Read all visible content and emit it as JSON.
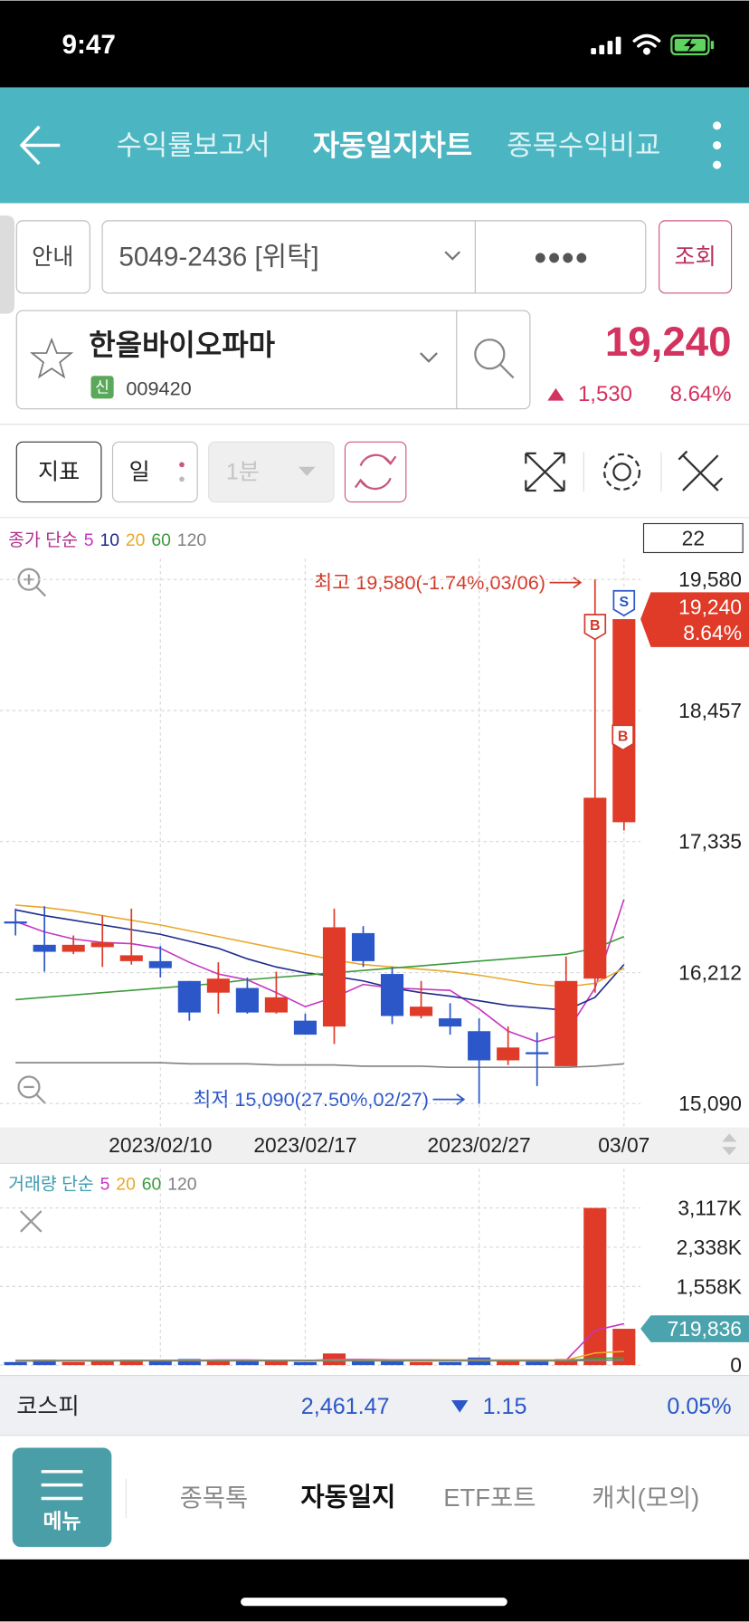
{
  "status": {
    "time": "9:47"
  },
  "header": {
    "tabs": [
      "수익률보고서",
      "자동일지차트",
      "종목수익비교"
    ]
  },
  "account": {
    "guide": "안내",
    "number": "5049-2436 [위탁]",
    "password": "●●●●",
    "query": "조회"
  },
  "stock": {
    "name": "한올바이오파마",
    "badge": "신",
    "code": "009420",
    "price": "19,240",
    "change": "1,530",
    "rate": "8.64%"
  },
  "toolbar": {
    "indicator": "지표",
    "period": "일",
    "interval": "1분"
  },
  "chart_data": [
    {
      "type": "candlestick",
      "legend_title": "종가 단순",
      "legend_color": "#b0308a",
      "visible_count": "22",
      "annotations": [
        "최고 19,580(-1.74%,03/06)",
        "최저 15,090(27.50%,02/27)"
      ],
      "markers": [
        "B",
        "S",
        "B"
      ],
      "price_tag": [
        "19,240",
        "8.64%"
      ],
      "categories": [
        null,
        null,
        null,
        null,
        null,
        "2023/02/10",
        null,
        null,
        null,
        null,
        "2023/02/17",
        null,
        null,
        null,
        null,
        null,
        "2023/02/27",
        null,
        null,
        null,
        null,
        "03/07"
      ],
      "open": [
        16650,
        16450,
        16390,
        16430,
        16310,
        16310,
        16140,
        16040,
        16080,
        15870,
        15800,
        15750,
        16550,
        16200,
        15840,
        15820,
        15710,
        15460,
        15530,
        15410,
        16160,
        17500
      ],
      "high": [
        16760,
        16780,
        16530,
        16700,
        16760,
        16440,
        16140,
        16300,
        16170,
        16220,
        15860,
        16760,
        16610,
        16260,
        16140,
        15950,
        15820,
        15750,
        15700,
        16350,
        19580,
        19240
      ],
      "low": [
        16530,
        16220,
        16370,
        16260,
        16280,
        16170,
        15800,
        15860,
        15860,
        15860,
        15680,
        15600,
        16260,
        15770,
        15820,
        15680,
        15090,
        15420,
        15240,
        15410,
        16040,
        17430
      ],
      "close": [
        16650,
        16390,
        16450,
        16470,
        16360,
        16250,
        15870,
        16160,
        15870,
        16000,
        15680,
        16600,
        16310,
        15840,
        15920,
        15750,
        15460,
        15570,
        15520,
        16140,
        17710,
        19240
      ],
      "up_color": "#e03a28",
      "down_color": "#2b57c9",
      "ylim": [
        15090,
        19580
      ],
      "yticks": [
        {
          "value": 19580,
          "label": "19,580"
        },
        {
          "value": 18457,
          "label": "18,457"
        },
        {
          "value": 17335,
          "label": "17,335"
        },
        {
          "value": 16212,
          "label": "16,212"
        },
        {
          "value": 15090,
          "label": "15,090"
        }
      ],
      "grid": true,
      "series": [
        {
          "name": "5",
          "color": "#c635c1",
          "values": [
            16650,
            16560,
            16500,
            16470,
            16460,
            16420,
            16300,
            16200,
            16150,
            16040,
            15920,
            16000,
            16110,
            16080,
            16070,
            16060,
            15900,
            15710,
            15620,
            15690,
            16080,
            16840
          ]
        },
        {
          "name": "10",
          "color": "#1e2a8a",
          "values": [
            16750,
            16700,
            16660,
            16620,
            16580,
            16540,
            16480,
            16420,
            16330,
            16260,
            16210,
            16180,
            16140,
            16080,
            16040,
            16010,
            15970,
            15930,
            15910,
            15890,
            16000,
            16280
          ]
        },
        {
          "name": "20",
          "color": "#e8a92a",
          "values": [
            16790,
            16770,
            16740,
            16700,
            16660,
            16620,
            16570,
            16520,
            16470,
            16420,
            16370,
            16320,
            16280,
            16260,
            16240,
            16220,
            16190,
            16150,
            16110,
            16090,
            16120,
            16250
          ]
        },
        {
          "name": "60",
          "color": "#3c9a3c",
          "values": [
            15980,
            16000,
            16020,
            16040,
            16060,
            16080,
            16100,
            16120,
            16150,
            16170,
            16190,
            16210,
            16230,
            16250,
            16270,
            16290,
            16310,
            16330,
            16350,
            16370,
            16420,
            16520
          ]
        },
        {
          "name": "120",
          "color": "#808080",
          "values": [
            15440,
            15440,
            15440,
            15440,
            15440,
            15440,
            15430,
            15430,
            15430,
            15420,
            15420,
            15420,
            15410,
            15410,
            15410,
            15400,
            15400,
            15400,
            15400,
            15400,
            15410,
            15430
          ]
        }
      ]
    },
    {
      "type": "bar",
      "legend_title": "거래량 단순",
      "legend_color": "#3b9bb0",
      "values": [
        60000,
        110000,
        60000,
        90000,
        110000,
        90000,
        120000,
        90000,
        90000,
        90000,
        60000,
        230000,
        90000,
        90000,
        60000,
        60000,
        150000,
        90000,
        70000,
        120000,
        3117000,
        719836
      ],
      "value_labels": [
        null,
        null,
        null,
        null,
        null,
        null,
        null,
        null,
        null,
        null,
        null,
        null,
        null,
        null,
        null,
        null,
        null,
        null,
        null,
        null,
        null,
        "719,836"
      ],
      "ylim": [
        0,
        3117000
      ],
      "yticks": [
        {
          "value": 3117000,
          "label": "3,117K"
        },
        {
          "value": 2338000,
          "label": "2,338K"
        },
        {
          "value": 1558000,
          "label": "1,558K"
        },
        0
      ],
      "grid": true,
      "series": [
        {
          "name": "5",
          "color": "#c635c1",
          "values": [
            80000,
            85000,
            85000,
            85000,
            90000,
            95000,
            95000,
            100000,
            100000,
            95000,
            90000,
            110000,
            110000,
            105000,
            105000,
            100000,
            100000,
            90000,
            85000,
            95000,
            690000,
            820000
          ]
        },
        {
          "name": "20",
          "color": "#e8a92a",
          "values": [
            95000,
            95000,
            95000,
            95000,
            95000,
            95000,
            95000,
            95000,
            95000,
            95000,
            95000,
            100000,
            100000,
            100000,
            100000,
            100000,
            100000,
            100000,
            100000,
            100000,
            240000,
            270000
          ]
        },
        {
          "name": "60",
          "color": "#3c9a3c",
          "values": [
            90000,
            90000,
            90000,
            90000,
            90000,
            90000,
            90000,
            90000,
            90000,
            90000,
            90000,
            90000,
            90000,
            90000,
            90000,
            90000,
            90000,
            90000,
            90000,
            90000,
            130000,
            145000
          ]
        },
        {
          "name": "120",
          "color": "#808080",
          "values": [
            85000,
            85000,
            85000,
            85000,
            85000,
            85000,
            85000,
            85000,
            85000,
            85000,
            85000,
            85000,
            85000,
            85000,
            85000,
            85000,
            85000,
            85000,
            85000,
            85000,
            95000,
            100000
          ]
        }
      ]
    }
  ],
  "index": {
    "name": "코스피",
    "value": "2,461.47",
    "change": "1.15",
    "rate": "0.05%"
  },
  "nav": {
    "menu": "메뉴",
    "tabs": [
      "종목톡",
      "자동일지",
      "ETF포트",
      "캐치(모의)"
    ]
  }
}
